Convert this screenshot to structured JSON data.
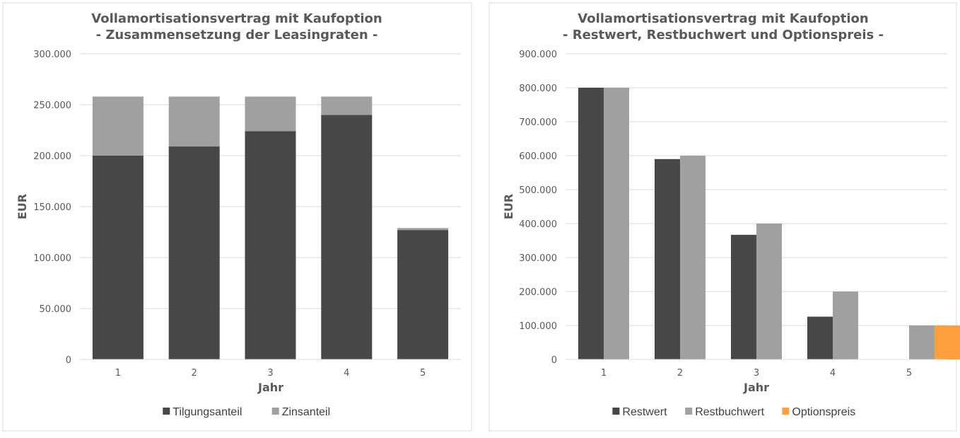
{
  "chart_data": [
    {
      "type": "bar",
      "stacked": true,
      "title": [
        "Vollamortisationsvertrag  mit Kaufoption",
        "- Zusammensetzung der Leasingraten -"
      ],
      "xlabel": "Jahr",
      "ylabel": "EUR",
      "ylim": [
        0,
        300000
      ],
      "yticks": [
        0,
        50000,
        100000,
        150000,
        200000,
        250000,
        300000
      ],
      "ytick_labels": [
        "0",
        "50.000",
        "100.000",
        "150.000",
        "200.000",
        "250.000",
        "300.000"
      ],
      "categories": [
        "1",
        "2",
        "3",
        "4",
        "5"
      ],
      "series": [
        {
          "name": "Tilgungsanteil",
          "color": "#474747",
          "values": [
            200000,
            209000,
            224000,
            240000,
            127000
          ]
        },
        {
          "name": "Zinsanteil",
          "color": "#a0a0a0",
          "values": [
            58000,
            49000,
            34000,
            18000,
            2000
          ]
        }
      ],
      "grid": true,
      "legend": "bottom"
    },
    {
      "type": "bar",
      "stacked": false,
      "title": [
        "Vollamortisationsvertrag  mit Kaufoption",
        "- Restwert, Restbuchwert und Optionspreis -"
      ],
      "xlabel": "Jahr",
      "ylabel": "EUR",
      "ylim": [
        0,
        900000
      ],
      "yticks": [
        0,
        100000,
        200000,
        300000,
        400000,
        500000,
        600000,
        700000,
        800000,
        900000
      ],
      "ytick_labels": [
        "0",
        "100.000",
        "200.000",
        "300.000",
        "400.000",
        "500.000",
        "600.000",
        "700.000",
        "800.000",
        "900.000"
      ],
      "categories": [
        "1",
        "2",
        "3",
        "4",
        "5"
      ],
      "series": [
        {
          "name": "Restwert",
          "color": "#474747",
          "values": [
            800000,
            590000,
            367000,
            126000,
            0
          ]
        },
        {
          "name": "Restbuchwert",
          "color": "#a0a0a0",
          "values": [
            800000,
            600000,
            400000,
            200000,
            100000
          ]
        },
        {
          "name": "Optionspreis",
          "color": "#ffa03c",
          "values": [
            0,
            0,
            0,
            0,
            100000
          ]
        }
      ],
      "grid": true,
      "legend": "bottom"
    }
  ]
}
